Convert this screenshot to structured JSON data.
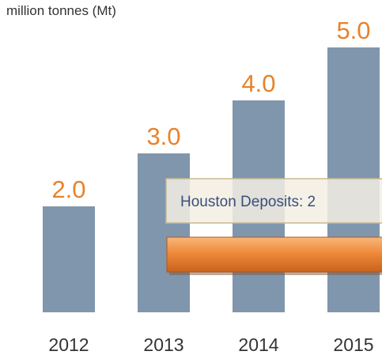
{
  "chart_data": {
    "type": "bar",
    "y_axis_label": "million tonnes (Mt)",
    "categories": [
      "2012",
      "2013",
      "2014",
      "2015"
    ],
    "values": [
      2,
      3,
      4,
      5
    ],
    "value_labels": [
      "2.0",
      "3.0",
      "4.0",
      "5.0"
    ],
    "color": "#7f96ad",
    "label_color": "#e8822a",
    "ylim": [
      0,
      5
    ],
    "annotation": "Houston Deposits: 2"
  }
}
